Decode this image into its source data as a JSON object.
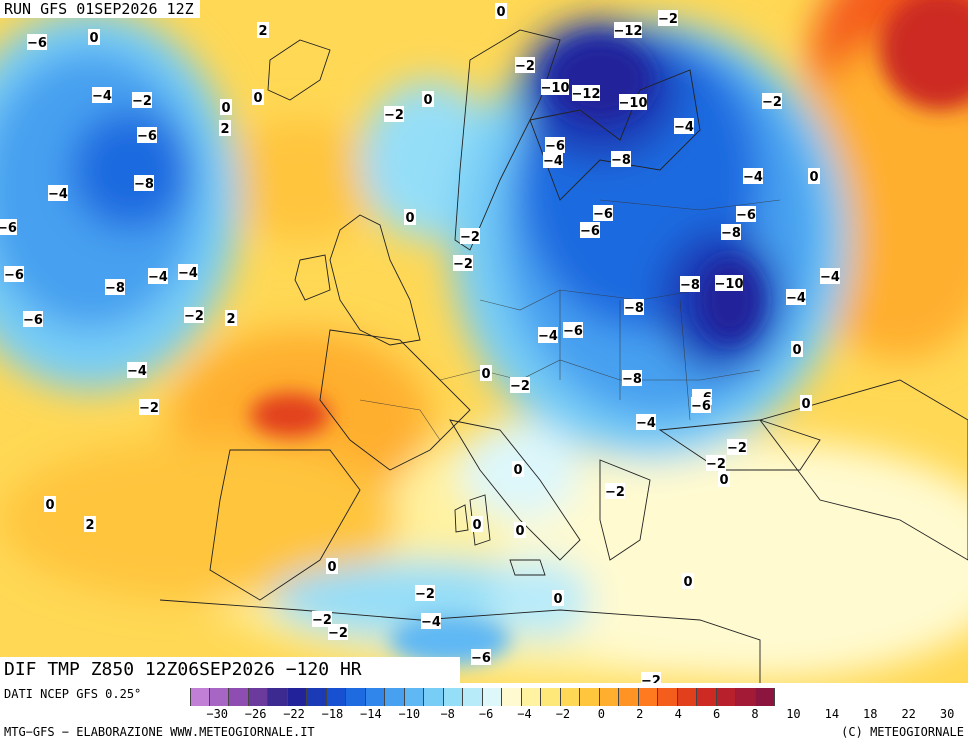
{
  "header": {
    "run_label": "RUN GFS 01SEP2026 12Z"
  },
  "footer": {
    "map_label": "DIF TMP Z850 12Z06SEP2026 −120 HR",
    "data_source": "DATI NCEP GFS 0.25°",
    "credit_left": "MTG−GFS − ELABORAZIONE WWW.METEOGIORNALE.IT",
    "credit_right": "(C) METEOGIORNALE"
  },
  "legend": {
    "colors": [
      "#c17fd6",
      "#a866c4",
      "#8e4db0",
      "#6a3a9c",
      "#3d2a91",
      "#22239a",
      "#1a3bb5",
      "#1750d0",
      "#1e6ae0",
      "#3186ec",
      "#47a0f0",
      "#5fb8f4",
      "#77cdf6",
      "#95def8",
      "#b8ebfa",
      "#ddf7fb",
      "#fffad0",
      "#fff2a0",
      "#ffe87a",
      "#ffd855",
      "#ffc53d",
      "#ffaf2d",
      "#ff9424",
      "#ff7a1f",
      "#f55d1d",
      "#e2401c",
      "#cc2a22",
      "#b8202c",
      "#a31a36",
      "#8c1540"
    ],
    "ticks": [
      "−30",
      "−26",
      "−22",
      "−18",
      "−14",
      "−10",
      "−8",
      "−6",
      "−4",
      "−2",
      "0",
      "2",
      "4",
      "6",
      "8",
      "10",
      "14",
      "18",
      "22",
      "30"
    ]
  },
  "map_labels": [
    "-6",
    "-4",
    "-2",
    "-6",
    "-8",
    "-4",
    "-6",
    "-8",
    "-6",
    "-4",
    "-4",
    "-2",
    "-6",
    "-4",
    "-2",
    "0",
    "0",
    "2",
    "0",
    "2",
    "2",
    "0",
    "-2",
    "0",
    "-2",
    "-2",
    "-2",
    "0",
    "-12",
    "-2",
    "-10",
    "-12",
    "-10",
    "-4",
    "-6",
    "-4",
    "-8",
    "-4",
    "-6",
    "-6",
    "-8",
    "-6",
    "-8",
    "-10",
    "-4",
    "-4",
    "-6",
    "-8",
    "-8",
    "-6",
    "-4",
    "-2",
    "0",
    "-2",
    "0",
    "-4",
    "0",
    "-2",
    "-2",
    "0",
    "-2",
    "-4",
    "-6",
    "0",
    "0",
    "2",
    "-2",
    "0",
    "0",
    "0",
    "0",
    "0",
    "-2",
    "-2",
    "0",
    "-6",
    "-2"
  ]
}
